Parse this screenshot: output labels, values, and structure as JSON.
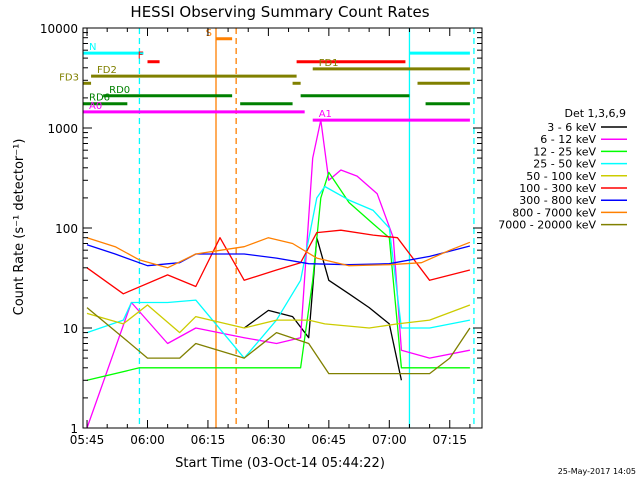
{
  "chart_data": {
    "type": "line",
    "title": "HESSI Observing Summary Count Rates",
    "xlabel": "Start Time (03-Oct-14 05:44:22)",
    "ylabel": "Count Rate (s⁻¹ detector⁻¹)",
    "yscale": "log",
    "ylim": [
      1,
      10000
    ],
    "xlim": [
      "05:44",
      "07:23"
    ],
    "x_ticks": [
      "05:45",
      "06:00",
      "06:15",
      "06:30",
      "06:45",
      "07:00",
      "07:15"
    ],
    "y_ticks": [
      "1",
      "10",
      "100",
      "1000",
      "10000"
    ],
    "legend_title": "Det 1,3,6,9",
    "legend_placement": "right",
    "footer": "25-May-2017 14:05",
    "series": [
      {
        "name": "3 - 6 keV",
        "color": "#000000",
        "points": [
          [
            "06:24",
            10
          ],
          [
            "06:30",
            15
          ],
          [
            "06:36",
            13
          ],
          [
            "06:40",
            8
          ],
          [
            "06:42",
            80
          ],
          [
            "06:45",
            30
          ],
          [
            "06:50",
            22
          ],
          [
            "06:55",
            16
          ],
          [
            "07:00",
            11
          ],
          [
            "07:03",
            3
          ]
        ]
      },
      {
        "name": "6 - 12 keV",
        "color": "#ff00ff",
        "points": [
          [
            "05:45",
            1
          ],
          [
            "05:56",
            18
          ],
          [
            "06:05",
            7
          ],
          [
            "06:12",
            10
          ],
          [
            "06:24",
            8
          ],
          [
            "06:32",
            7
          ],
          [
            "06:38",
            8
          ],
          [
            "06:41",
            500
          ],
          [
            "06:43",
            1200
          ],
          [
            "06:45",
            300
          ],
          [
            "06:48",
            380
          ],
          [
            "06:52",
            330
          ],
          [
            "06:57",
            220
          ],
          [
            "07:01",
            80
          ],
          [
            "07:03",
            6
          ],
          [
            "07:10",
            5
          ],
          [
            "07:20",
            6
          ]
        ]
      },
      {
        "name": "12 - 25 keV",
        "color": "#00ff00",
        "points": [
          [
            "05:45",
            3
          ],
          [
            "05:58",
            4
          ],
          [
            "06:05",
            4
          ],
          [
            "06:24",
            4
          ],
          [
            "06:38",
            4
          ],
          [
            "06:41",
            30
          ],
          [
            "06:43",
            200
          ],
          [
            "06:45",
            360
          ],
          [
            "06:50",
            180
          ],
          [
            "06:56",
            110
          ],
          [
            "07:00",
            80
          ],
          [
            "07:03",
            4
          ],
          [
            "07:20",
            4
          ]
        ]
      },
      {
        "name": "25 - 50 keV",
        "color": "#00ffff",
        "points": [
          [
            "05:45",
            9
          ],
          [
            "05:54",
            12
          ],
          [
            "05:56",
            18
          ],
          [
            "06:05",
            18
          ],
          [
            "06:12",
            19
          ],
          [
            "06:24",
            5
          ],
          [
            "06:32",
            12
          ],
          [
            "06:38",
            30
          ],
          [
            "06:42",
            200
          ],
          [
            "06:44",
            260
          ],
          [
            "06:50",
            190
          ],
          [
            "06:56",
            150
          ],
          [
            "07:00",
            100
          ],
          [
            "07:03",
            10
          ],
          [
            "07:10",
            10
          ],
          [
            "07:20",
            12
          ]
        ]
      },
      {
        "name": "50 - 100 keV",
        "color": "#cccc00",
        "points": [
          [
            "05:45",
            14
          ],
          [
            "05:54",
            11
          ],
          [
            "06:00",
            17
          ],
          [
            "06:08",
            9
          ],
          [
            "06:12",
            13
          ],
          [
            "06:24",
            10
          ],
          [
            "06:32",
            12
          ],
          [
            "06:40",
            12
          ],
          [
            "06:44",
            11
          ],
          [
            "06:55",
            10
          ],
          [
            "07:02",
            11
          ],
          [
            "07:10",
            12
          ],
          [
            "07:20",
            17
          ]
        ]
      },
      {
        "name": "100 - 300 keV",
        "color": "#ff0000",
        "points": [
          [
            "05:45",
            40
          ],
          [
            "05:54",
            22
          ],
          [
            "06:05",
            34
          ],
          [
            "06:12",
            26
          ],
          [
            "06:18",
            80
          ],
          [
            "06:24",
            30
          ],
          [
            "06:32",
            38
          ],
          [
            "06:38",
            45
          ],
          [
            "06:42",
            90
          ],
          [
            "06:48",
            95
          ],
          [
            "06:56",
            85
          ],
          [
            "07:02",
            80
          ],
          [
            "07:10",
            30
          ],
          [
            "07:20",
            38
          ]
        ]
      },
      {
        "name": "300 - 800 keV",
        "color": "#0000ff",
        "points": [
          [
            "05:45",
            68
          ],
          [
            "05:52",
            55
          ],
          [
            "06:00",
            42
          ],
          [
            "06:08",
            45
          ],
          [
            "06:12",
            55
          ],
          [
            "06:24",
            55
          ],
          [
            "06:32",
            50
          ],
          [
            "06:40",
            44
          ],
          [
            "06:50",
            43
          ],
          [
            "07:00",
            44
          ],
          [
            "07:10",
            52
          ],
          [
            "07:20",
            66
          ]
        ]
      },
      {
        "name": "800 - 7000 keV",
        "color": "#ff8000",
        "points": [
          [
            "05:45",
            80
          ],
          [
            "05:52",
            65
          ],
          [
            "05:58",
            48
          ],
          [
            "06:05",
            40
          ],
          [
            "06:12",
            55
          ],
          [
            "06:24",
            65
          ],
          [
            "06:30",
            80
          ],
          [
            "06:36",
            70
          ],
          [
            "06:42",
            50
          ],
          [
            "06:50",
            42
          ],
          [
            "07:00",
            43
          ],
          [
            "07:08",
            45
          ],
          [
            "07:15",
            60
          ],
          [
            "07:20",
            72
          ]
        ]
      },
      {
        "name": "7000 - 20000 keV",
        "color": "#808000",
        "points": [
          [
            "05:45",
            16
          ],
          [
            "05:54",
            8
          ],
          [
            "06:00",
            5
          ],
          [
            "06:08",
            5
          ],
          [
            "06:12",
            7
          ],
          [
            "06:24",
            5
          ],
          [
            "06:32",
            9
          ],
          [
            "06:40",
            7
          ],
          [
            "06:45",
            3.5
          ],
          [
            "06:55",
            3.5
          ],
          [
            "07:05",
            3.5
          ],
          [
            "07:10",
            3.5
          ],
          [
            "07:15",
            5
          ],
          [
            "07:20",
            10
          ]
        ]
      }
    ],
    "flag_bars": [
      {
        "label": "N",
        "color": "#00ffff",
        "level": 5600,
        "segments": [
          [
            "05:44",
            "05:59"
          ],
          [
            "07:05",
            "07:20"
          ]
        ]
      },
      {
        "label": "S",
        "color": "#ff8000",
        "level": 7800,
        "segments": [
          [
            "06:17",
            "06:21"
          ]
        ]
      },
      {
        "label": "F",
        "color": "#ff0000",
        "level": 4600,
        "segments": [
          [
            "06:00",
            "06:03"
          ],
          [
            "06:37",
            "07:04"
          ]
        ]
      },
      {
        "label": "FD1",
        "color": "#808000",
        "level": 3900,
        "segments": [
          [
            "06:41",
            "07:20"
          ]
        ]
      },
      {
        "label": "FD2",
        "color": "#808000",
        "level": 3300,
        "segments": [
          [
            "05:46",
            "06:37"
          ]
        ]
      },
      {
        "label": "FD3",
        "color": "#808000",
        "level": 2800,
        "segments": [
          [
            "05:44",
            "05:46"
          ],
          [
            "06:36",
            "06:38"
          ],
          [
            "07:07",
            "07:20"
          ]
        ]
      },
      {
        "label": "RD0",
        "color": "#008000",
        "level": 2100,
        "segments": [
          [
            "05:49",
            "06:21"
          ],
          [
            "06:38",
            "07:05"
          ]
        ]
      },
      {
        "label": "RD6",
        "color": "#008000",
        "level": 1750,
        "segments": [
          [
            "05:44",
            "05:55"
          ],
          [
            "06:23",
            "06:36"
          ],
          [
            "07:09",
            "07:20"
          ]
        ]
      },
      {
        "label": "A0",
        "color": "#ff00ff",
        "level": 1450,
        "segments": [
          [
            "05:44",
            "06:39"
          ]
        ]
      },
      {
        "label": "A1",
        "color": "#ff00ff",
        "level": 1200,
        "segments": [
          [
            "06:41",
            "07:20"
          ]
        ]
      }
    ],
    "vertical_lines": [
      {
        "at": "05:58",
        "color": "#00ffff",
        "style": "dashed"
      },
      {
        "at": "06:17",
        "color": "#ff8000",
        "style": "solid"
      },
      {
        "at": "06:22",
        "color": "#ff8000",
        "style": "dashed"
      },
      {
        "at": "07:05",
        "color": "#00ffff",
        "style": "solid"
      },
      {
        "at": "07:21",
        "color": "#00ffff",
        "style": "dashed"
      }
    ]
  }
}
